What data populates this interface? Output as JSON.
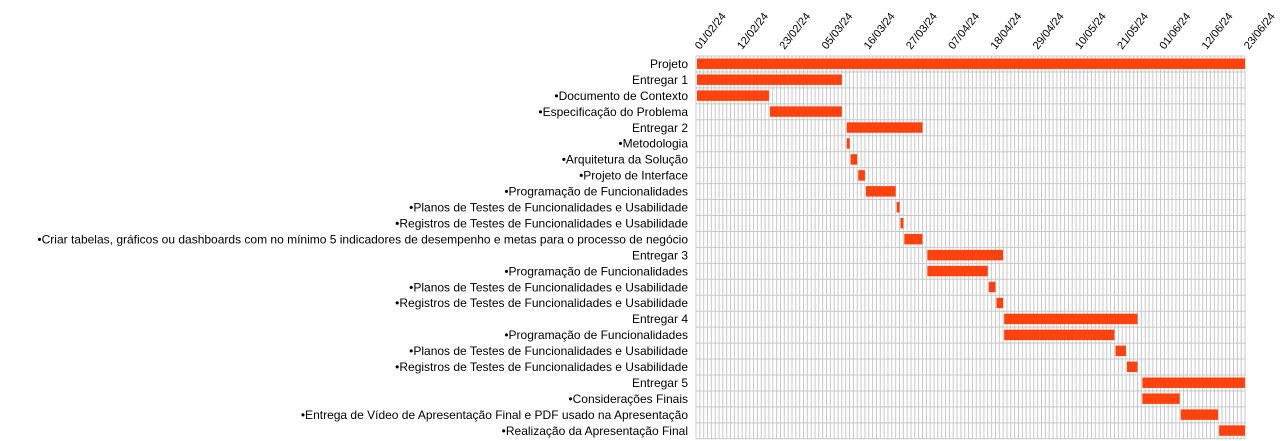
{
  "chart_data": {
    "type": "gantt",
    "date_format": "DD/MM/YY",
    "x_range": [
      "2024-02-01",
      "2024-06-23"
    ],
    "tick_labels": [
      "01/02/24",
      "12/02/24",
      "23/02/24",
      "05/03/24",
      "16/03/24",
      "27/03/24",
      "07/04/24",
      "18/04/24",
      "29/04/24",
      "10/05/24",
      "21/05/24",
      "01/06/24",
      "12/06/24",
      "23/06/24"
    ],
    "tick_dates": [
      "2024-02-01",
      "2024-02-12",
      "2024-02-23",
      "2024-03-05",
      "2024-03-16",
      "2024-03-27",
      "2024-04-07",
      "2024-04-18",
      "2024-04-29",
      "2024-05-10",
      "2024-05-21",
      "2024-06-01",
      "2024-06-12",
      "2024-06-23"
    ],
    "grid": "daily",
    "bar_color": "#ff420e",
    "tasks": [
      {
        "label": "Projeto",
        "start": "2024-02-01",
        "end": "2024-06-23"
      },
      {
        "label": "Entregar 1",
        "start": "2024-02-01",
        "end": "2024-03-10"
      },
      {
        "label": "•Documento de Contexto",
        "start": "2024-02-01",
        "end": "2024-02-20"
      },
      {
        "label": "•Especificação do Problema",
        "start": "2024-02-20",
        "end": "2024-03-10"
      },
      {
        "label": "Entregar 2",
        "start": "2024-03-11",
        "end": "2024-03-31"
      },
      {
        "label": "•Metodologia",
        "start": "2024-03-11",
        "end": "2024-03-12"
      },
      {
        "label": "•Arquitetura da Solução",
        "start": "2024-03-12",
        "end": "2024-03-14"
      },
      {
        "label": "•Projeto de Interface",
        "start": "2024-03-14",
        "end": "2024-03-16"
      },
      {
        "label": "•Programação de Funcionalidades",
        "start": "2024-03-16",
        "end": "2024-03-24"
      },
      {
        "label": "•Planos de Testes de Funcionalidades e Usabilidade",
        "start": "2024-03-24",
        "end": "2024-03-25"
      },
      {
        "label": "•Registros de Testes de Funcionalidades e Usabilidade",
        "start": "2024-03-25",
        "end": "2024-03-26"
      },
      {
        "label": "•Criar tabelas, gráficos ou dashboards com no mínimo 5 indicadores de desempenho e metas para o processo de negócio",
        "start": "2024-03-26",
        "end": "2024-03-31"
      },
      {
        "label": "Entregar 3",
        "start": "2024-04-01",
        "end": "2024-04-21"
      },
      {
        "label": "•Programação de Funcionalidades",
        "start": "2024-04-01",
        "end": "2024-04-17"
      },
      {
        "label": "•Planos de Testes de Funcionalidades e Usabilidade",
        "start": "2024-04-17",
        "end": "2024-04-19"
      },
      {
        "label": "•Registros de Testes de Funcionalidades e Usabilidade",
        "start": "2024-04-19",
        "end": "2024-04-21"
      },
      {
        "label": "Entregar 4",
        "start": "2024-04-21",
        "end": "2024-05-26"
      },
      {
        "label": "•Programação de Funcionalidades",
        "start": "2024-04-21",
        "end": "2024-05-20"
      },
      {
        "label": "•Planos de Testes de Funcionalidades e Usabilidade",
        "start": "2024-05-20",
        "end": "2024-05-23"
      },
      {
        "label": "•Registros de Testes de Funcionalidades e Usabilidade",
        "start": "2024-05-23",
        "end": "2024-05-26"
      },
      {
        "label": "Entregar 5",
        "start": "2024-05-27",
        "end": "2024-06-23"
      },
      {
        "label": "•Considerações Finais",
        "start": "2024-05-27",
        "end": "2024-06-06"
      },
      {
        "label": "•Entrega de Vídeo de Apresentação Final e PDF usado na Apresentação",
        "start": "2024-06-06",
        "end": "2024-06-16"
      },
      {
        "label": "•Realização da Apresentação Final",
        "start": "2024-06-16",
        "end": "2024-06-23"
      }
    ]
  }
}
